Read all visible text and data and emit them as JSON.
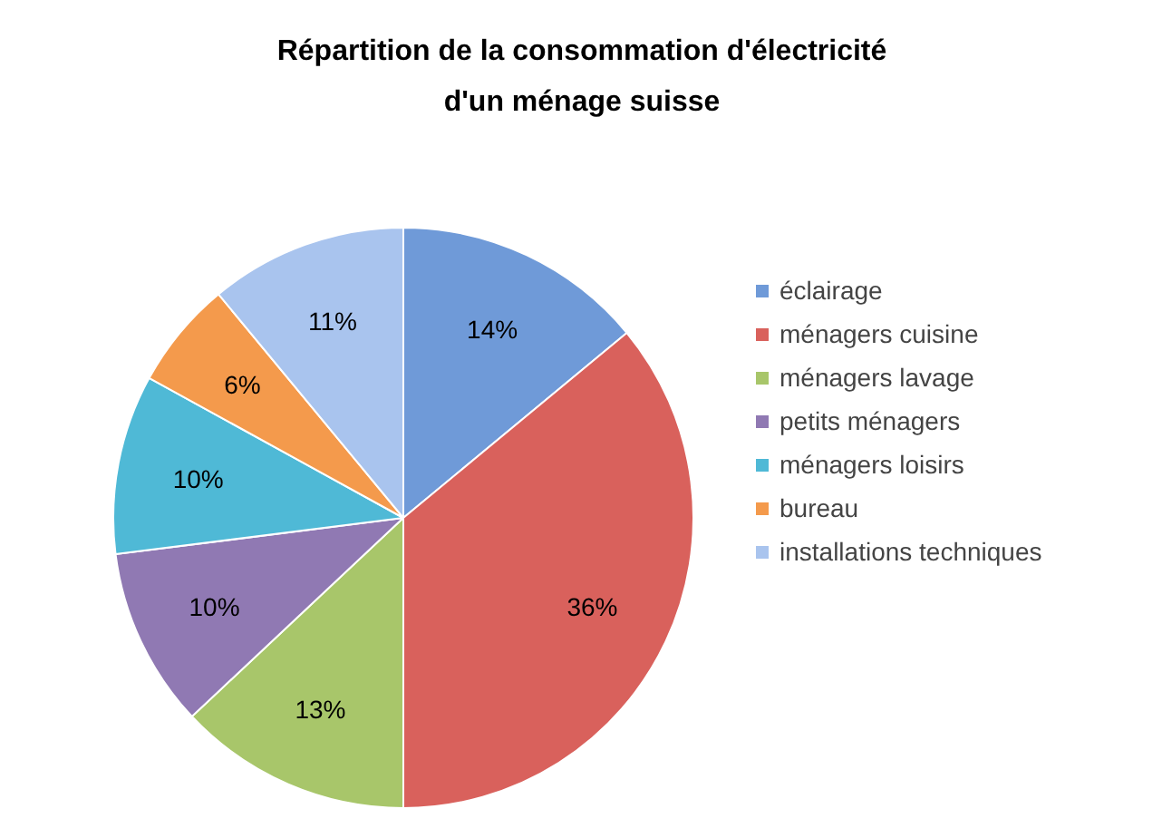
{
  "chart_data": {
    "type": "pie",
    "title": "Répartition de la consommation d'électricité d'un ménage suisse",
    "categories": [
      "éclairage",
      "ménagers cuisine",
      "ménagers lavage",
      "petits ménagers",
      "ménagers loisirs",
      "bureau",
      "installations techniques"
    ],
    "values": [
      14,
      36,
      13,
      10,
      10,
      6,
      11
    ],
    "value_labels": [
      "14%",
      "36%",
      "13%",
      "10%",
      "10%",
      "6%",
      "11%"
    ],
    "colors": [
      "#6f9ad8",
      "#d9615c",
      "#a8c66a",
      "#9079b3",
      "#4fb9d6",
      "#f49a4c",
      "#a9c4ee"
    ],
    "legend": "right"
  }
}
